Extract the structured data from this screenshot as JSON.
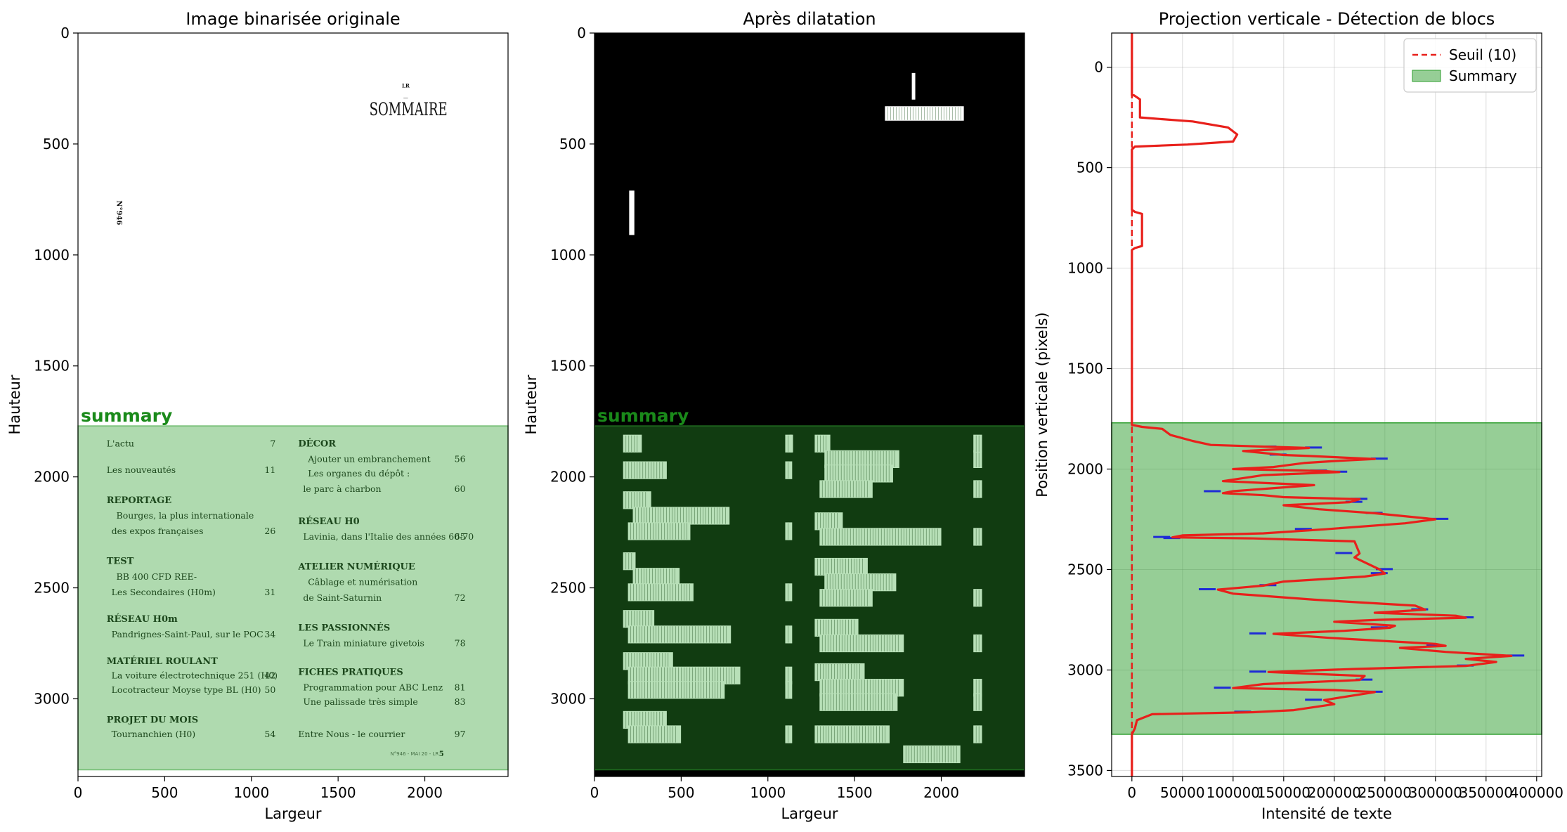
{
  "chart_data": [
    {
      "type": "image",
      "title": "Image binarisée originale",
      "xlabel": "Largeur",
      "ylabel": "Hauteur",
      "xlim": [
        0,
        2480
      ],
      "ylim": [
        3350,
        0
      ],
      "xticks": [
        0,
        500,
        1000,
        1500,
        2000
      ],
      "yticks": [
        0,
        500,
        1000,
        1500,
        2000,
        2500,
        3000
      ],
      "region": {
        "label": "summary",
        "y_start": 1770,
        "y_end": 3320,
        "color": "#2e9e2e"
      },
      "doc_text": {
        "top_marker": "LR",
        "top_dash": "—",
        "heading": "SOMMAIRE",
        "side_issue": "N°946",
        "footer": "N°946 - MAI 20 - LR",
        "footer_page": "5"
      },
      "toc_left": [
        {
          "label": "L'actu",
          "page": "7",
          "bold": false,
          "indent": 0,
          "y": 1850
        },
        {
          "label": "Les nouveautés",
          "page": "11",
          "bold": false,
          "indent": 0,
          "y": 1970
        },
        {
          "label": "REPORTAGE",
          "page": "",
          "bold": true,
          "indent": 0,
          "y": 2105
        },
        {
          "label": "Bourges, la plus internationale",
          "page": "",
          "bold": false,
          "indent": 2,
          "y": 2175
        },
        {
          "label": "des expos françaises",
          "page": "26",
          "bold": false,
          "indent": 1,
          "y": 2245
        },
        {
          "label": "TEST",
          "page": "",
          "bold": true,
          "indent": 0,
          "y": 2380
        },
        {
          "label": "BB 400 CFD REE-",
          "page": "",
          "bold": false,
          "indent": 2,
          "y": 2450
        },
        {
          "label": "Les Secondaires (H0m)",
          "page": "31",
          "bold": false,
          "indent": 1,
          "y": 2520
        },
        {
          "label": "RÉSEAU H0m",
          "page": "",
          "bold": true,
          "indent": 0,
          "y": 2640
        },
        {
          "label": "Pandrignes-Saint-Paul, sur le POC",
          "page": "34",
          "bold": false,
          "indent": 1,
          "y": 2710
        },
        {
          "label": "MATÉRIEL ROULANT",
          "page": "",
          "bold": true,
          "indent": 0,
          "y": 2830
        },
        {
          "label": "La voiture électrotechnique 251 (H0)",
          "page": "42",
          "bold": false,
          "indent": 1,
          "y": 2895
        },
        {
          "label": "Locotracteur Moyse type BL (H0)",
          "page": "50",
          "bold": false,
          "indent": 1,
          "y": 2960
        },
        {
          "label": "PROJET DU MOIS",
          "page": "",
          "bold": true,
          "indent": 0,
          "y": 3095
        },
        {
          "label": "Tournanchien (H0)",
          "page": "54",
          "bold": false,
          "indent": 1,
          "y": 3160
        }
      ],
      "toc_right": [
        {
          "label": "DÉCOR",
          "page": "",
          "bold": true,
          "indent": 0,
          "y": 1850
        },
        {
          "label": "Ajouter un embranchement",
          "page": "56",
          "bold": false,
          "indent": 2,
          "y": 1920
        },
        {
          "label": "Les organes du dépôt :",
          "page": "",
          "bold": false,
          "indent": 2,
          "y": 1985
        },
        {
          "label": "le parc à charbon",
          "page": "60",
          "bold": false,
          "indent": 1,
          "y": 2055
        },
        {
          "label": "RÉSEAU H0",
          "page": "",
          "bold": true,
          "indent": 0,
          "y": 2200
        },
        {
          "label": "Lavinia, dans l'Italie des années 60-70",
          "page": "65",
          "bold": false,
          "indent": 1,
          "y": 2270
        },
        {
          "label": "ATELIER NUMÉRIQUE",
          "page": "",
          "bold": true,
          "indent": 0,
          "y": 2405
        },
        {
          "label": "Câblage et numérisation",
          "page": "",
          "bold": false,
          "indent": 2,
          "y": 2475
        },
        {
          "label": "de Saint-Saturnin",
          "page": "72",
          "bold": false,
          "indent": 1,
          "y": 2545
        },
        {
          "label": "LES PASSIONNÉS",
          "page": "",
          "bold": true,
          "indent": 0,
          "y": 2680
        },
        {
          "label": "Le Train miniature givetois",
          "page": "78",
          "bold": false,
          "indent": 1,
          "y": 2750
        },
        {
          "label": "FICHES PRATIQUES",
          "page": "",
          "bold": true,
          "indent": 0,
          "y": 2880
        },
        {
          "label": "Programmation pour ABC Lenz",
          "page": "81",
          "bold": false,
          "indent": 1,
          "y": 2950
        },
        {
          "label": "Une palissade très simple",
          "page": "83",
          "bold": false,
          "indent": 1,
          "y": 3015
        },
        {
          "label": "Entre Nous - le courrier",
          "page": "97",
          "bold": false,
          "indent": 0,
          "y": 3160
        }
      ]
    },
    {
      "type": "image",
      "title": "Après dilatation",
      "xlabel": "Largeur",
      "ylabel": "Hauteur",
      "xlim": [
        0,
        2480
      ],
      "ylim": [
        3350,
        0
      ],
      "xticks": [
        0,
        500,
        1000,
        1500,
        2000
      ],
      "yticks": [
        0,
        500,
        1000,
        1500,
        2000,
        2500,
        3000
      ],
      "region": {
        "label": "summary",
        "y_start": 1770,
        "y_end": 3320,
        "color": "#2e9e2e"
      },
      "background": "#000000"
    },
    {
      "type": "line",
      "title": "Projection verticale - Détection de blocs",
      "xlabel": "Intensité de texte",
      "ylabel": "Position verticale (pixels)",
      "xlim": [
        -20000,
        405000
      ],
      "ylim": [
        3530,
        -170
      ],
      "xticks": [
        0,
        50000,
        100000,
        150000,
        200000,
        250000,
        300000,
        350000,
        400000
      ],
      "xtick_labels": [
        "0",
        "50000",
        "100000",
        "150000",
        "200000",
        "250000",
        "300000",
        "350000",
        "400000"
      ],
      "yticks": [
        0,
        500,
        1000,
        1500,
        2000,
        2500,
        3000,
        3500
      ],
      "grid": true,
      "legend_position": "top-right",
      "threshold": {
        "name": "Seuil (10)",
        "value": 10,
        "color": "#e8201b"
      },
      "region": {
        "name": "Summary",
        "y_start": 1770,
        "y_end": 3320,
        "color": "#2e9e2e"
      },
      "series": [
        {
          "color": "#e8201b",
          "points": [
            [
              0,
              -170
            ],
            [
              0,
              140
            ],
            [
              2000,
              140
            ],
            [
              8000,
              160
            ],
            [
              8000,
              250
            ],
            [
              20000,
              255
            ],
            [
              60000,
              270
            ],
            [
              95000,
              300
            ],
            [
              104000,
              335
            ],
            [
              100000,
              370
            ],
            [
              55000,
              385
            ],
            [
              3000,
              395
            ],
            [
              0,
              410
            ],
            [
              0,
              710
            ],
            [
              3000,
              720
            ],
            [
              10000,
              730
            ],
            [
              10000,
              890
            ],
            [
              3000,
              900
            ],
            [
              0,
              910
            ],
            [
              0,
              1780
            ],
            [
              10000,
              1790
            ],
            [
              30000,
              1800
            ],
            [
              38000,
              1830
            ],
            [
              60000,
              1860
            ],
            [
              78000,
              1880
            ],
            [
              140000,
              1890
            ],
            [
              175000,
              1895
            ],
            [
              110000,
              1910
            ],
            [
              150000,
              1930
            ],
            [
              175000,
              1935
            ],
            [
              240000,
              1950
            ],
            [
              200000,
              1960
            ],
            [
              170000,
              1970
            ],
            [
              140000,
              1990
            ],
            [
              100000,
              2000
            ],
            [
              190000,
              2010
            ],
            [
              205000,
              2015
            ],
            [
              130000,
              2030
            ],
            [
              90000,
              2060
            ],
            [
              180000,
              2080
            ],
            [
              100000,
              2110
            ],
            [
              90000,
              2120
            ],
            [
              130000,
              2130
            ],
            [
              150000,
              2140
            ],
            [
              225000,
              2150
            ],
            [
              215000,
              2165
            ],
            [
              150000,
              2180
            ],
            [
              185000,
              2200
            ],
            [
              240000,
              2220
            ],
            [
              300000,
              2250
            ],
            [
              270000,
              2270
            ],
            [
              190000,
              2300
            ],
            [
              130000,
              2320
            ],
            [
              50000,
              2330
            ],
            [
              40000,
              2340
            ],
            [
              120000,
              2345
            ],
            [
              220000,
              2360
            ],
            [
              225000,
              2420
            ],
            [
              220000,
              2440
            ],
            [
              245000,
              2500
            ],
            [
              250000,
              2520
            ],
            [
              230000,
              2535
            ],
            [
              150000,
              2560
            ],
            [
              130000,
              2580
            ],
            [
              85000,
              2600
            ],
            [
              100000,
              2620
            ],
            [
              180000,
              2650
            ],
            [
              280000,
              2680
            ],
            [
              290000,
              2700
            ],
            [
              240000,
              2715
            ],
            [
              320000,
              2730
            ],
            [
              330000,
              2740
            ],
            [
              245000,
              2750
            ],
            [
              200000,
              2760
            ],
            [
              260000,
              2780
            ],
            [
              255000,
              2790
            ],
            [
              210000,
              2805
            ],
            [
              140000,
              2820
            ],
            [
              195000,
              2840
            ],
            [
              300000,
              2870
            ],
            [
              310000,
              2880
            ],
            [
              265000,
              2890
            ],
            [
              310000,
              2910
            ],
            [
              375000,
              2930
            ],
            [
              330000,
              2945
            ],
            [
              360000,
              2960
            ],
            [
              330000,
              2980
            ],
            [
              220000,
              2995
            ],
            [
              135000,
              3010
            ],
            [
              230000,
              3030
            ],
            [
              225000,
              3050
            ],
            [
              130000,
              3070
            ],
            [
              100000,
              3090
            ],
            [
              200000,
              3100
            ],
            [
              240000,
              3110
            ],
            [
              190000,
              3150
            ],
            [
              200000,
              3170
            ],
            [
              160000,
              3200
            ],
            [
              120000,
              3210
            ],
            [
              20000,
              3220
            ],
            [
              5000,
              3250
            ],
            [
              3000,
              3290
            ],
            [
              0,
              3320
            ],
            [
              0,
              3530
            ]
          ]
        },
        {
          "color": "#1f2bd6",
          "points": [
            [
              140000,
              1888
            ],
            [
              185000,
              1893
            ],
            [
              150000,
              1928
            ],
            [
              250000,
              1948
            ],
            [
              190000,
              2008
            ],
            [
              210000,
              2013
            ],
            [
              85000,
              2110
            ],
            [
              230000,
              2148
            ],
            [
              225000,
              2163
            ],
            [
              245000,
              2218
            ],
            [
              310000,
              2248
            ],
            [
              175000,
              2298
            ],
            [
              35000,
              2338
            ],
            [
              45000,
              2343
            ],
            [
              215000,
              2418
            ],
            [
              255000,
              2498
            ],
            [
              250000,
              2518
            ],
            [
              140000,
              2578
            ],
            [
              80000,
              2598
            ],
            [
              290000,
              2698
            ],
            [
              335000,
              2738
            ],
            [
              250000,
              2788
            ],
            [
              130000,
              2818
            ],
            [
              305000,
              2878
            ],
            [
              385000,
              2928
            ],
            [
              335000,
              2978
            ],
            [
              130000,
              3008
            ],
            [
              235000,
              3048
            ],
            [
              95000,
              3088
            ],
            [
              245000,
              3108
            ],
            [
              185000,
              3148
            ],
            [
              115000,
              3208
            ]
          ]
        }
      ]
    }
  ]
}
